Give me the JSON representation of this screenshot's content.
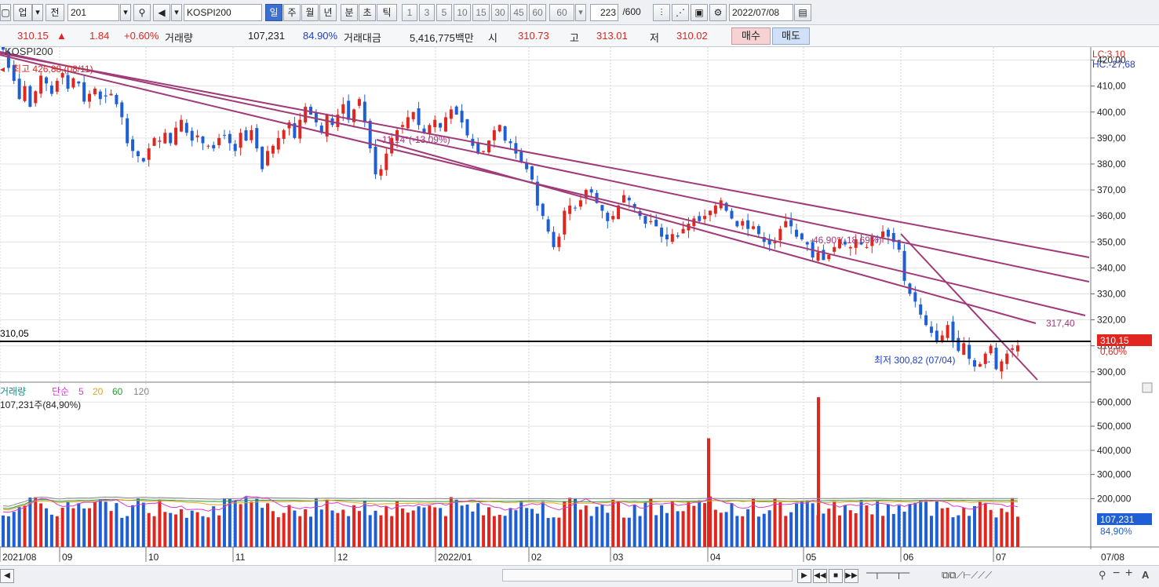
{
  "toolbar": {
    "type_select": "업",
    "prev_label": "전",
    "code": "201",
    "name": "KOSPI200",
    "periods": [
      "일",
      "주",
      "월",
      "년",
      "분",
      "초",
      "틱"
    ],
    "selected_period": "일",
    "intervals": [
      "1",
      "3",
      "5",
      "10",
      "15",
      "30",
      "45",
      "60"
    ],
    "interval_select": "60",
    "count": "223",
    "count_total": "/600",
    "date": "2022/07/08"
  },
  "info": {
    "price": "310.15",
    "arrow": "▲",
    "change": "1.84",
    "change_pct": "+0.60%",
    "volume_label": "거래량",
    "volume": "107,231",
    "volume_ratio": "84.90%",
    "value_label": "거래대금",
    "value": "5,416,775백만",
    "open_label": "시",
    "open": "310.73",
    "high_label": "고",
    "high": "313.01",
    "low_label": "저",
    "low": "310.02",
    "buy_label": "매수",
    "sell_label": "매도"
  },
  "chart_data": {
    "type": "candlestick",
    "title": "KOSPI200",
    "price_axis": {
      "ticks": [
        "420,00",
        "410,00",
        "400,00",
        "390,00",
        "380,00",
        "370,00",
        "360,00",
        "350,00",
        "340,00",
        "330,00",
        "320,00",
        "310,00",
        "300,00"
      ],
      "range": [
        296,
        425
      ]
    },
    "lc_label": "LC:3,10",
    "hc_label": "HC:-27,68",
    "high_annotation": "최고 426,88 (08/11)",
    "low_annotation": "최저 300,82 (07/04)",
    "hline_label": "310,05",
    "hline_value": 310.05,
    "current_badge": "310,15",
    "current_pct": "0,60%",
    "trend_labels": [
      "-11,14°(-13,09%)",
      "-46,90°(-18,69%)",
      "317,40"
    ],
    "x_labels": [
      "2021/08",
      "09",
      "10",
      "11",
      "12",
      "2022/01",
      "02",
      "03",
      "04",
      "05",
      "06",
      "07",
      "07/08"
    ],
    "candles_close_path": [
      {
        "m": "08",
        "c": [
          424,
          417,
          412,
          405,
          410,
          402,
          408,
          414,
          411,
          407,
          412,
          415,
          409,
          413,
          411,
          404,
          407,
          409,
          405,
          406
        ]
      },
      {
        "m": "09",
        "c": [
          407,
          403,
          398,
          388,
          385,
          383,
          381,
          386,
          390,
          389,
          392,
          388,
          394,
          397,
          392,
          389,
          391,
          388,
          387,
          386,
          390
        ]
      },
      {
        "m": "10",
        "c": [
          391,
          388,
          385,
          392,
          389,
          393,
          386,
          378,
          385,
          387,
          390,
          393,
          396,
          390
        ]
      },
      {
        "m": "11",
        "c": [
          397,
          402,
          399,
          396,
          392,
          399,
          395,
          399,
          403,
          397,
          401,
          405,
          396,
          386,
          376,
          378,
          384,
          390,
          393,
          395
        ]
      },
      {
        "m": "12",
        "c": [
          398,
          400,
          395,
          392,
          395,
          397,
          394,
          398,
          401,
          399,
          396,
          391,
          387,
          384,
          385,
          389,
          393,
          395,
          389
        ]
      },
      {
        "m": "01",
        "c": [
          388,
          384,
          381,
          378,
          374,
          364,
          360,
          354,
          348,
          352,
          362,
          364,
          363,
          366,
          370
        ]
      },
      {
        "m": "02",
        "c": [
          369,
          365,
          362,
          358,
          360,
          364,
          368,
          366,
          363,
          360,
          357,
          358,
          356,
          352,
          351,
          353
        ]
      },
      {
        "m": "03",
        "c": [
          352,
          355,
          357,
          359,
          358,
          360,
          362,
          364,
          366,
          362,
          359,
          356,
          358,
          355,
          356,
          353,
          350,
          349
        ]
      },
      {
        "m": "04",
        "c": [
          350,
          355,
          358,
          356,
          352,
          351,
          349,
          344,
          346,
          343,
          345,
          348,
          351,
          349,
          348,
          351,
          349,
          348,
          352,
          351,
          354
        ]
      },
      {
        "m": "05",
        "c": [
          352,
          350,
          347,
          335,
          330,
          327,
          322,
          318,
          315,
          312,
          314,
          318,
          312,
          308,
          311,
          305,
          302,
          303,
          307,
          310
        ]
      }
    ],
    "volume_panel": {
      "title": "거래량",
      "ma_label": "단순",
      "ma_periods": [
        "5",
        "20",
        "60",
        "120"
      ],
      "current_text": "107,231주(84,90%)",
      "ticks": [
        "600,000",
        "500,000",
        "400,000",
        "300,000",
        "200,000"
      ],
      "range": [
        0,
        640000
      ],
      "current_badge": "107,231",
      "current_pct": "84,90%",
      "spikes": [
        {
          "label": "04",
          "value": 450000
        },
        {
          "label": "05",
          "value": 620000
        }
      ]
    },
    "colors": {
      "up": "#e0261e",
      "down": "#1f5fd6",
      "trend": "#a03a78",
      "ma5": "#d63bd0",
      "ma20": "#e7a21a",
      "ma60": "#2a9a36",
      "ma120": "#888888"
    }
  },
  "bottom": {
    "nav_buttons": [
      "▶",
      "◀◀",
      "■",
      "▶▶"
    ],
    "tool_icons": [
      "zoom-out",
      "minus",
      "plus",
      "text"
    ]
  }
}
